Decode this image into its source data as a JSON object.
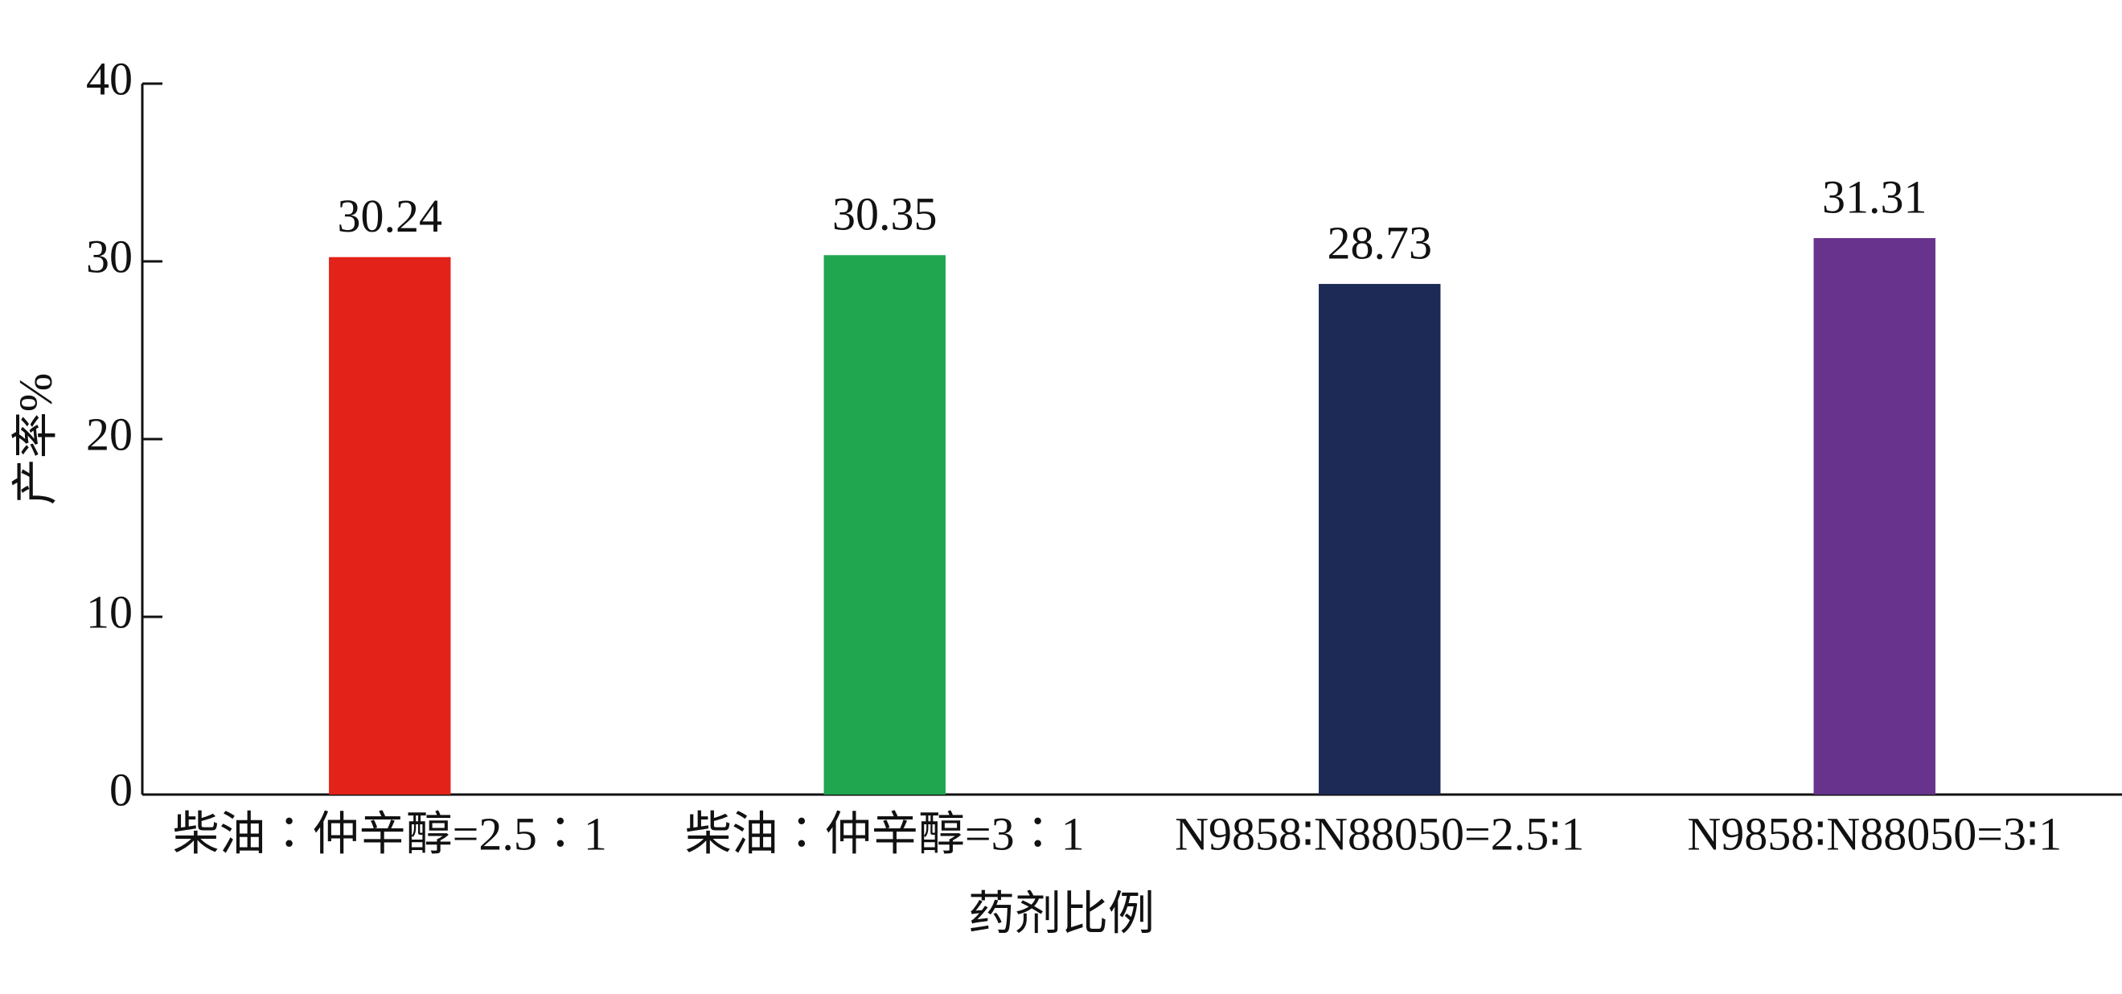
{
  "chart_data": {
    "type": "bar",
    "categories": [
      "柴油∶仲辛醇=2.5∶1",
      "柴油∶仲辛醇=3∶1",
      "N9858∶N88050=2.5∶1",
      "N9858∶N88050=3∶1"
    ],
    "values": [
      30.24,
      30.35,
      28.73,
      31.31
    ],
    "colors": [
      "#e32219",
      "#20a64f",
      "#1c2a55",
      "#68338c"
    ],
    "x_label": "药剂比例",
    "y_label": "产率%",
    "ylim": [
      0,
      40
    ],
    "yticks": [
      0,
      10,
      20,
      30,
      40
    ],
    "grid": false
  }
}
